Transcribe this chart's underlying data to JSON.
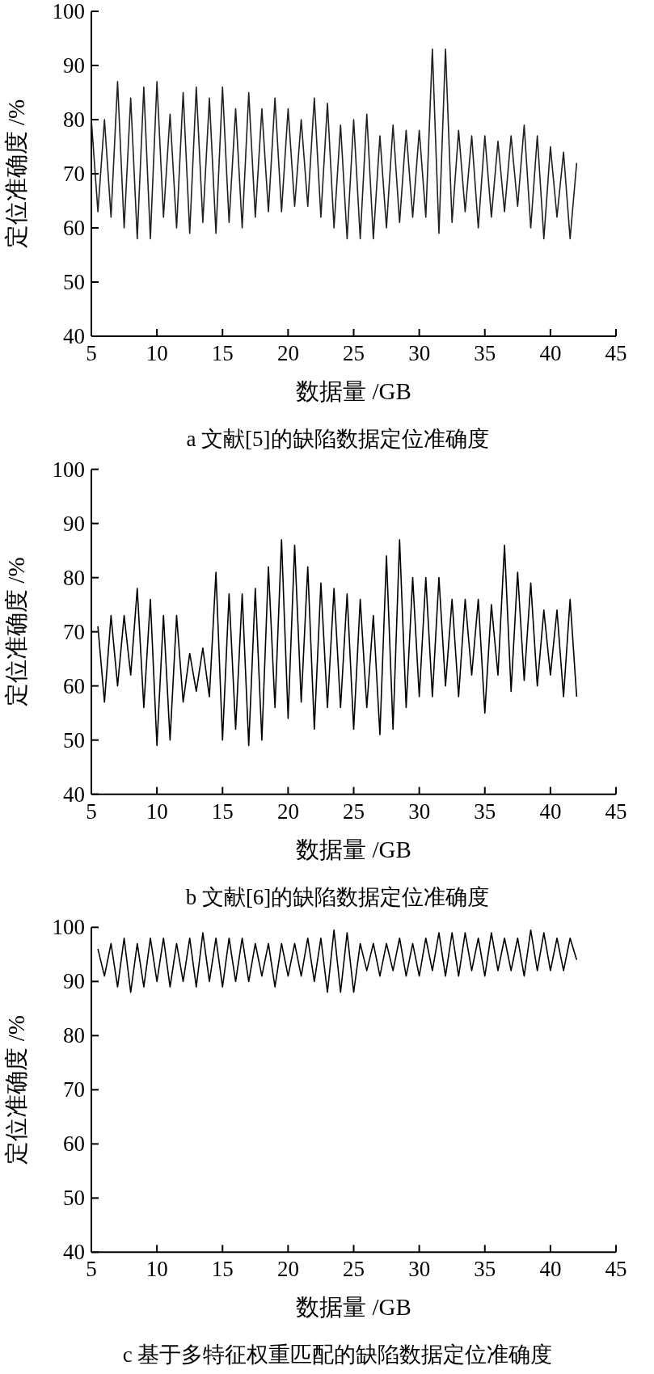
{
  "chart_data": [
    {
      "type": "line",
      "title": "a 文献[5]的缺陷数据定位准确度",
      "xlabel": "数据量 /GB",
      "ylabel": "定位准确度 /%",
      "xlim": [
        5,
        45
      ],
      "xticks": [
        5,
        10,
        15,
        20,
        25,
        30,
        35,
        40,
        45
      ],
      "ylim": [
        40,
        100
      ],
      "yticks": [
        40,
        50,
        60,
        70,
        80,
        90,
        100
      ],
      "series": [
        {
          "color": "#231f20",
          "x": [
            5.0,
            5.5,
            6.0,
            6.5,
            7.0,
            7.5,
            8.0,
            8.5,
            9.0,
            9.5,
            10.0,
            10.5,
            11.0,
            11.5,
            12.0,
            12.5,
            13.0,
            13.5,
            14.0,
            14.5,
            15.0,
            15.5,
            16.0,
            16.5,
            17.0,
            17.5,
            18.0,
            18.5,
            19.0,
            19.5,
            20.0,
            20.5,
            21.0,
            21.5,
            22.0,
            22.5,
            23.0,
            23.5,
            24.0,
            24.5,
            25.0,
            25.5,
            26.0,
            26.5,
            27.0,
            27.5,
            28.0,
            28.5,
            29.0,
            29.5,
            30.0,
            30.5,
            31.0,
            31.5,
            32.0,
            32.5,
            33.0,
            33.5,
            34.0,
            34.5,
            35.0,
            35.5,
            36.0,
            36.5,
            37.0,
            37.5,
            38.0,
            38.5,
            39.0,
            39.5,
            40.0,
            40.5,
            41.0,
            41.5,
            42.0
          ],
          "values": [
            80,
            63,
            80,
            62,
            87,
            60,
            84,
            58,
            86,
            58,
            87,
            62,
            81,
            60,
            85,
            59,
            86,
            61,
            84,
            59,
            86,
            61,
            82,
            60,
            85,
            62,
            82,
            63,
            84,
            63,
            82,
            64,
            80,
            64,
            84,
            62,
            83,
            60,
            79,
            58,
            80,
            58,
            81,
            58,
            77,
            60,
            79,
            61,
            78,
            62,
            78,
            62,
            93,
            59,
            93,
            61,
            78,
            63,
            77,
            60,
            77,
            62,
            76,
            63,
            77,
            64,
            79,
            60,
            77,
            58,
            75,
            62,
            74,
            58,
            72
          ]
        }
      ]
    },
    {
      "type": "line",
      "title": "b 文献[6]的缺陷数据定位准确度",
      "xlabel": "数据量 /GB",
      "ylabel": "定位准确度 /%",
      "xlim": [
        5,
        45
      ],
      "xticks": [
        5,
        10,
        15,
        20,
        25,
        30,
        35,
        40,
        45
      ],
      "ylim": [
        40,
        100
      ],
      "yticks": [
        40,
        50,
        60,
        70,
        80,
        90,
        100
      ],
      "series": [
        {
          "color": "#000000",
          "x": [
            5.5,
            6.0,
            6.5,
            7.0,
            7.5,
            8.0,
            8.5,
            9.0,
            9.5,
            10.0,
            10.5,
            11.0,
            11.5,
            12.0,
            12.5,
            13.0,
            13.5,
            14.0,
            14.5,
            15.0,
            15.5,
            16.0,
            16.5,
            17.0,
            17.5,
            18.0,
            18.5,
            19.0,
            19.5,
            20.0,
            20.5,
            21.0,
            21.5,
            22.0,
            22.5,
            23.0,
            23.5,
            24.0,
            24.5,
            25.0,
            25.5,
            26.0,
            26.5,
            27.0,
            27.5,
            28.0,
            28.5,
            29.0,
            29.5,
            30.0,
            30.5,
            31.0,
            31.5,
            32.0,
            32.5,
            33.0,
            33.5,
            34.0,
            34.5,
            35.0,
            35.5,
            36.0,
            36.5,
            37.0,
            37.5,
            38.0,
            38.5,
            39.0,
            39.5,
            40.0,
            40.5,
            41.0,
            41.5,
            42.0
          ],
          "values": [
            71,
            57,
            73,
            60,
            73,
            62,
            78,
            56,
            76,
            49,
            73,
            50,
            73,
            57,
            66,
            59,
            67,
            58,
            81,
            50,
            77,
            52,
            77,
            49,
            78,
            50,
            82,
            56,
            87,
            54,
            86,
            57,
            82,
            52,
            79,
            56,
            78,
            56,
            77,
            52,
            76,
            56,
            73,
            51,
            84,
            52,
            87,
            56,
            80,
            58,
            80,
            58,
            80,
            60,
            76,
            58,
            76,
            62,
            76,
            55,
            75,
            62,
            86,
            59,
            81,
            61,
            79,
            60,
            74,
            62,
            74,
            58,
            76,
            58
          ]
        }
      ]
    },
    {
      "type": "line",
      "title": "c 基于多特征权重匹配的缺陷数据定位准确度",
      "xlabel": "数据量 /GB",
      "ylabel": "定位准确度 /%",
      "xlim": [
        5,
        45
      ],
      "xticks": [
        5,
        10,
        15,
        20,
        25,
        30,
        35,
        40,
        45
      ],
      "ylim": [
        40,
        100
      ],
      "yticks": [
        40,
        50,
        60,
        70,
        80,
        90,
        100
      ],
      "series": [
        {
          "color": "#000000",
          "x": [
            5.5,
            6.0,
            6.5,
            7.0,
            7.5,
            8.0,
            8.5,
            9.0,
            9.5,
            10.0,
            10.5,
            11.0,
            11.5,
            12.0,
            12.5,
            13.0,
            13.5,
            14.0,
            14.5,
            15.0,
            15.5,
            16.0,
            16.5,
            17.0,
            17.5,
            18.0,
            18.5,
            19.0,
            19.5,
            20.0,
            20.5,
            21.0,
            21.5,
            22.0,
            22.5,
            23.0,
            23.5,
            24.0,
            24.5,
            25.0,
            25.5,
            26.0,
            26.5,
            27.0,
            27.5,
            28.0,
            28.5,
            29.0,
            29.5,
            30.0,
            30.5,
            31.0,
            31.5,
            32.0,
            32.5,
            33.0,
            33.5,
            34.0,
            34.5,
            35.0,
            35.5,
            36.0,
            36.5,
            37.0,
            37.5,
            38.0,
            38.5,
            39.0,
            39.5,
            40.0,
            40.5,
            41.0,
            41.5,
            42.0
          ],
          "values": [
            96,
            91,
            97,
            89,
            98,
            88,
            97,
            89,
            98,
            90,
            98,
            89,
            97,
            90,
            98,
            89,
            99,
            90,
            98,
            89,
            98,
            90,
            98,
            90,
            97,
            91,
            97,
            89,
            97,
            91,
            97,
            91,
            98,
            90,
            98,
            88,
            99.5,
            88,
            99,
            88,
            97,
            92,
            97,
            91,
            97,
            92,
            98,
            91,
            97,
            91,
            98,
            92,
            99,
            91,
            99,
            91,
            99,
            92,
            98,
            91,
            99,
            92,
            98,
            92,
            98,
            91,
            99.5,
            92,
            99,
            92,
            98,
            92,
            98,
            94
          ]
        }
      ]
    }
  ]
}
